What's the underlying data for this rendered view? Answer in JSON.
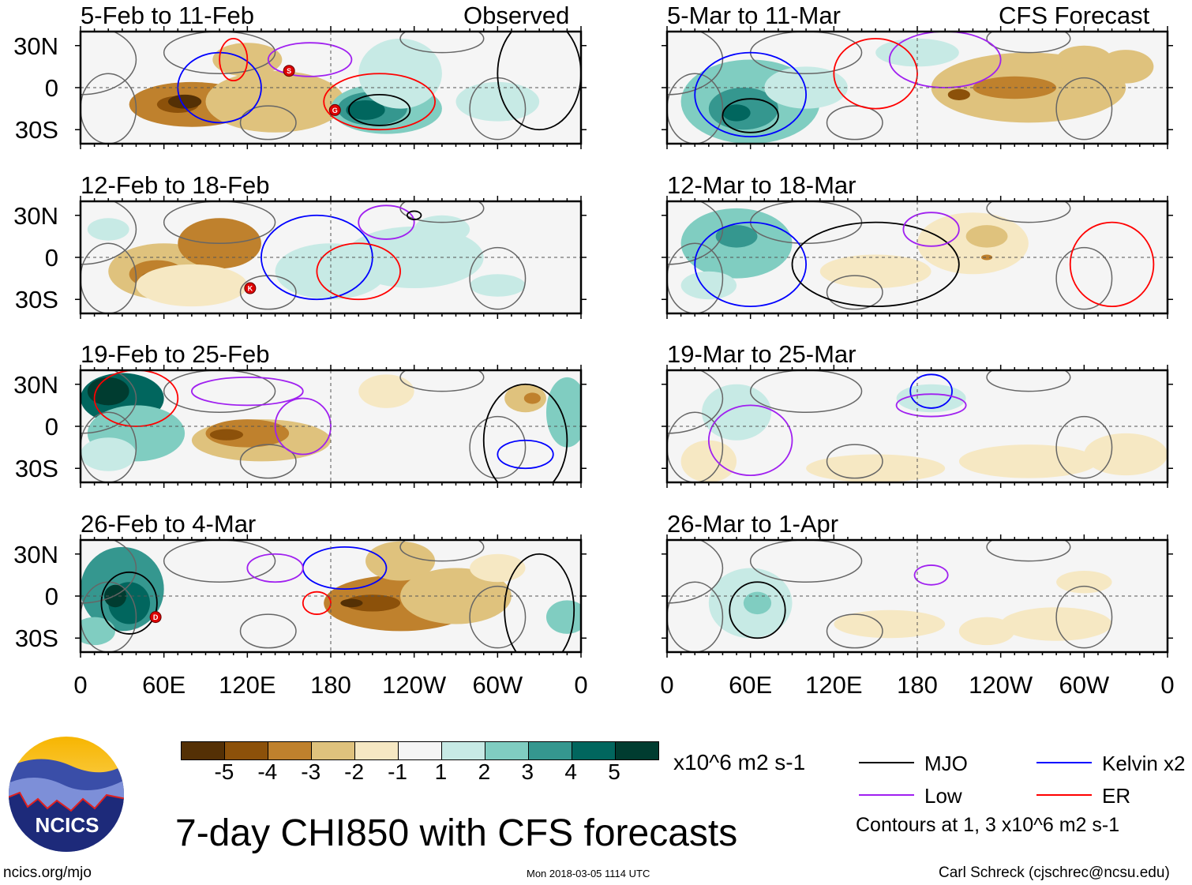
{
  "left_header": "Observed",
  "right_header": "CFS Forecast",
  "panels": [
    {
      "title": "5-Feb to 11-Feb",
      "storms": [
        {
          "label": "S",
          "lon": 150,
          "lat": 12
        },
        {
          "label": "G",
          "lon": 183,
          "lat": -16
        }
      ]
    },
    {
      "title": "12-Feb to 18-Feb",
      "storms": [
        {
          "label": "K",
          "lon": 122,
          "lat": -22
        }
      ]
    },
    {
      "title": "19-Feb to 25-Feb",
      "storms": []
    },
    {
      "title": "26-Feb to 4-Mar",
      "storms": [
        {
          "label": "D",
          "lon": 54,
          "lat": -15
        }
      ]
    },
    {
      "title": "5-Mar to 11-Mar",
      "storms": []
    },
    {
      "title": "12-Mar to 18-Mar",
      "storms": []
    },
    {
      "title": "19-Mar to 25-Mar",
      "storms": []
    },
    {
      "title": "26-Mar to 1-Apr",
      "storms": []
    }
  ],
  "lat_labels": [
    "30N",
    "0",
    "30S"
  ],
  "lon_labels": [
    "0",
    "60E",
    "120E",
    "180",
    "120W",
    "60W",
    "0"
  ],
  "chart_data": {
    "type": "heatmap",
    "title": "7-day CHI850 with CFS forecasts",
    "units": "x10^6 m2 s-1",
    "colorbar": {
      "ticks": [
        "-5",
        "-4",
        "-3",
        "-2",
        "-1",
        "1",
        "2",
        "3",
        "4",
        "5"
      ],
      "colors": [
        "#543005",
        "#8c510a",
        "#bf812d",
        "#dfc27d",
        "#f6e8c3",
        "#f5f5f5",
        "#c7eae5",
        "#80cdc1",
        "#35978f",
        "#01665e",
        "#003c30"
      ]
    },
    "xrange": [
      0,
      360
    ],
    "yrange": [
      -40,
      40
    ],
    "contours": [
      {
        "name": "MJO",
        "color": "#000000"
      },
      {
        "name": "Kelvin x2",
        "color": "#0000ff"
      },
      {
        "name": "Low",
        "color": "#a020f0"
      },
      {
        "name": "ER",
        "color": "#ff0000"
      }
    ],
    "contour_note": "Contours at 1, 3 x10^6 m2 s-1"
  },
  "footer": {
    "left": "ncics.org/mjo",
    "center": "Mon 2018-03-05 1114 UTC",
    "right": "Carl Schreck (cjschrec@ncsu.edu)"
  },
  "logo": {
    "text": "NCICS"
  }
}
